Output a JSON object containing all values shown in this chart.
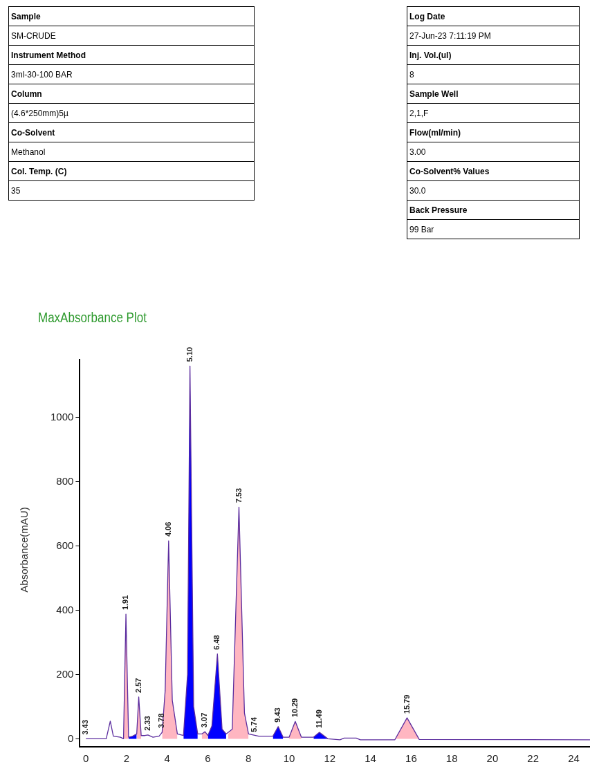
{
  "chart_data": [
    {
      "type": "other",
      "annotations": [
        "Sample",
        "SM-CRUDE",
        "Instrument Method",
        "3ml-30-100 BAR",
        "Column",
        "(4.6*250mm)5µ",
        "Co-Solvent",
        "Methanol",
        "Col. Temp. (C)",
        "35"
      ]
    },
    {
      "type": "other",
      "annotations": [
        "Log Date",
        "27-Jun-23 7:11:19 PM",
        "Inj. Vol.(ul)",
        "8",
        "Sample Well",
        "2,1,F",
        "Flow(ml/min)",
        "3.00",
        "Co-Solvent% Values",
        "30.0",
        "Back Pressure",
        "99  Bar"
      ]
    },
    {
      "type": "line",
      "title": "MaxAbsorbance Plot",
      "ylabel": "Absorbance(mAU)",
      "xlim": [
        -0.3,
        24.8
      ],
      "ylim": [
        -25,
        1180
      ],
      "xticks": [
        0,
        2,
        4,
        6,
        8,
        10,
        12,
        14,
        16,
        18,
        20,
        22,
        24
      ],
      "yticks": [
        0,
        200,
        400,
        600,
        800,
        1000
      ],
      "grid": false,
      "legend": false,
      "marker": "none",
      "line_style": "solid",
      "series": [
        {
          "type": "area",
          "color": "#ffb6c1",
          "x": [
            1.85,
            1.97,
            2.1,
            2.2,
            2.5,
            2.6,
            2.72,
            2.8,
            3.75,
            3.9,
            4.07,
            4.25,
            4.5,
            4.6,
            5.7,
            5.86,
            6.0,
            6.1,
            7.0,
            7.2,
            7.53,
            7.8,
            8.0,
            8.1,
            10.0,
            10.3,
            10.6,
            10.7,
            15.2,
            15.8,
            16.4
          ],
          "values": [
            0,
            388,
            5,
            null,
            15,
            130,
            10,
            null,
            20,
            150,
            616,
            120,
            15,
            null,
            15,
            22,
            10,
            null,
            15,
            30,
            721,
            80,
            15,
            null,
            5,
            54,
            5,
            null,
            -3,
            65,
            -2
          ]
        },
        {
          "type": "area",
          "color": "#0000ff",
          "x": [
            2.1,
            2.3,
            2.5,
            2.6,
            4.8,
            5.0,
            5.12,
            5.3,
            5.5,
            5.6,
            6.0,
            6.2,
            6.47,
            6.7,
            6.9,
            7.0,
            9.2,
            9.46,
            9.7,
            9.8,
            11.2,
            11.49,
            11.9
          ],
          "values": [
            5,
            8,
            15,
            null,
            10,
            200,
            1160,
            100,
            15,
            null,
            10,
            40,
            264,
            30,
            15,
            null,
            8,
            38,
            5,
            null,
            5,
            20,
            0
          ]
        },
        {
          "type": "line",
          "color": "#5b2c9e",
          "x": [
            0,
            1.0,
            1.2,
            1.35,
            1.7,
            1.85,
            1.97,
            2.1,
            2.3,
            2.5,
            2.6,
            2.72,
            2.9,
            3.05,
            3.3,
            3.6,
            3.75,
            3.9,
            4.07,
            4.25,
            4.5,
            4.8,
            5.0,
            5.12,
            5.3,
            5.5,
            5.7,
            5.86,
            6.0,
            6.2,
            6.47,
            6.7,
            6.9,
            7.2,
            7.53,
            7.8,
            8.0,
            8.5,
            9.2,
            9.46,
            9.7,
            10.0,
            10.3,
            10.6,
            11.2,
            11.49,
            11.9,
            12.5,
            12.7,
            13.3,
            13.5,
            15.2,
            15.8,
            16.4,
            24.8
          ],
          "values": [
            0,
            0,
            55,
            8,
            5,
            0,
            388,
            5,
            8,
            15,
            130,
            10,
            10,
            12,
            5,
            8,
            20,
            150,
            616,
            120,
            15,
            10,
            200,
            1160,
            100,
            15,
            15,
            22,
            10,
            40,
            264,
            30,
            15,
            30,
            721,
            80,
            15,
            8,
            8,
            38,
            5,
            5,
            54,
            5,
            5,
            20,
            0,
            -3,
            2,
            2,
            -3,
            -3,
            65,
            -2,
            -3
          ]
        }
      ],
      "annotations": [
        {
          "text": "3.43",
          "x": 0,
          "y": 0
        },
        {
          "text": "1.91",
          "x": 1.97,
          "y": 388
        },
        {
          "text": "2.57",
          "x": 2.6,
          "y": 130
        },
        {
          "text": "2.33",
          "x": 3.05,
          "y": 12
        },
        {
          "text": "3.78",
          "x": 3.75,
          "y": 20
        },
        {
          "text": "4.06",
          "x": 4.07,
          "y": 616
        },
        {
          "text": "5.10",
          "x": 5.12,
          "y": 1160
        },
        {
          "text": "3.07",
          "x": 5.86,
          "y": 22
        },
        {
          "text": "6.48",
          "x": 6.47,
          "y": 264
        },
        {
          "text": "7.53",
          "x": 7.53,
          "y": 721
        },
        {
          "text": "5.74",
          "x": 8.3,
          "y": 8
        },
        {
          "text": "9.43",
          "x": 9.46,
          "y": 38
        },
        {
          "text": "10.29",
          "x": 10.3,
          "y": 54
        },
        {
          "text": "11.49",
          "x": 11.49,
          "y": 20
        },
        {
          "text": "15.79",
          "x": 15.8,
          "y": 65
        }
      ]
    }
  ]
}
